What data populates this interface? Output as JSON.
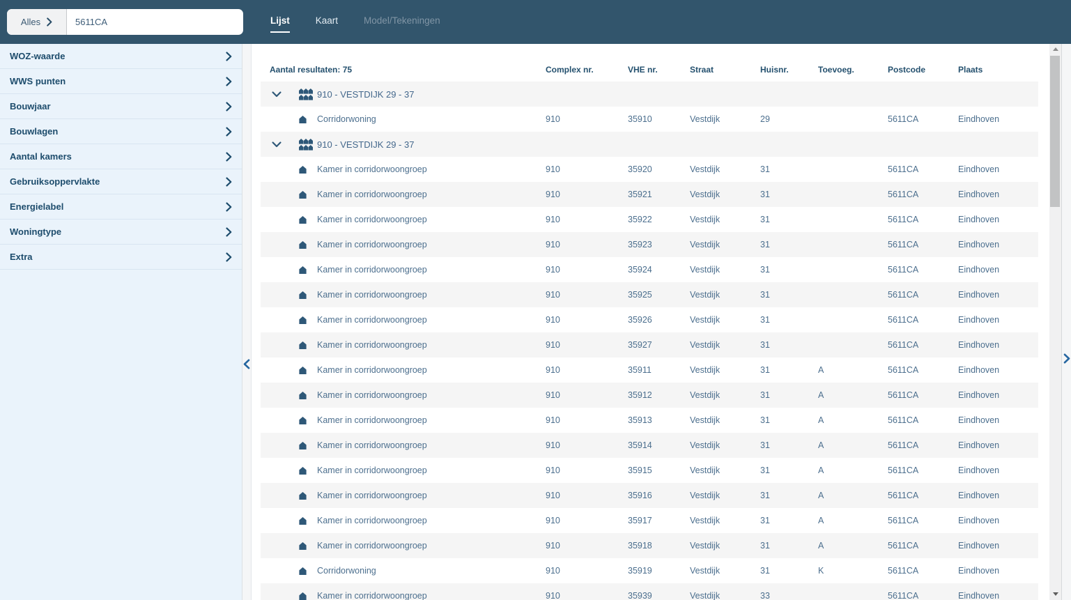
{
  "topbar": {
    "search": {
      "scope_label": "Alles",
      "value": "5611CA"
    },
    "tabs": [
      {
        "label": "Lijst",
        "active": true
      },
      {
        "label": "Kaart",
        "active": false
      },
      {
        "label": "Model/Tekeningen",
        "active": false
      }
    ]
  },
  "sidebar": {
    "items": [
      {
        "label": "WOZ-waarde"
      },
      {
        "label": "WWS punten"
      },
      {
        "label": "Bouwjaar"
      },
      {
        "label": "Bouwlagen"
      },
      {
        "label": "Aantal kamers"
      },
      {
        "label": "Gebruiksoppervlakte"
      },
      {
        "label": "Energielabel"
      },
      {
        "label": "Woningtype"
      },
      {
        "label": "Extra"
      }
    ]
  },
  "results": {
    "count_label": "Aantal resultaten: 75",
    "columns": [
      "Complex nr.",
      "VHE nr.",
      "Straat",
      "Huisnr.",
      "Toevoeg.",
      "Postcode",
      "Plaats"
    ],
    "rows": [
      {
        "type": "group",
        "label": "910 - VESTDIJK 29 - 37"
      },
      {
        "type": "unit",
        "name": "Corridorwoning",
        "complex": "910",
        "vhe": "35910",
        "straat": "Vestdijk",
        "huisnr": "29",
        "toevoeg": "",
        "postcode": "5611CA",
        "plaats": "Eindhoven"
      },
      {
        "type": "group",
        "label": "910 - VESTDIJK 29 - 37"
      },
      {
        "type": "unit",
        "name": "Kamer in corridorwoongroep",
        "complex": "910",
        "vhe": "35920",
        "straat": "Vestdijk",
        "huisnr": "31",
        "toevoeg": "",
        "postcode": "5611CA",
        "plaats": "Eindhoven"
      },
      {
        "type": "unit",
        "name": "Kamer in corridorwoongroep",
        "complex": "910",
        "vhe": "35921",
        "straat": "Vestdijk",
        "huisnr": "31",
        "toevoeg": "",
        "postcode": "5611CA",
        "plaats": "Eindhoven"
      },
      {
        "type": "unit",
        "name": "Kamer in corridorwoongroep",
        "complex": "910",
        "vhe": "35922",
        "straat": "Vestdijk",
        "huisnr": "31",
        "toevoeg": "",
        "postcode": "5611CA",
        "plaats": "Eindhoven"
      },
      {
        "type": "unit",
        "name": "Kamer in corridorwoongroep",
        "complex": "910",
        "vhe": "35923",
        "straat": "Vestdijk",
        "huisnr": "31",
        "toevoeg": "",
        "postcode": "5611CA",
        "plaats": "Eindhoven"
      },
      {
        "type": "unit",
        "name": "Kamer in corridorwoongroep",
        "complex": "910",
        "vhe": "35924",
        "straat": "Vestdijk",
        "huisnr": "31",
        "toevoeg": "",
        "postcode": "5611CA",
        "plaats": "Eindhoven"
      },
      {
        "type": "unit",
        "name": "Kamer in corridorwoongroep",
        "complex": "910",
        "vhe": "35925",
        "straat": "Vestdijk",
        "huisnr": "31",
        "toevoeg": "",
        "postcode": "5611CA",
        "plaats": "Eindhoven"
      },
      {
        "type": "unit",
        "name": "Kamer in corridorwoongroep",
        "complex": "910",
        "vhe": "35926",
        "straat": "Vestdijk",
        "huisnr": "31",
        "toevoeg": "",
        "postcode": "5611CA",
        "plaats": "Eindhoven"
      },
      {
        "type": "unit",
        "name": "Kamer in corridorwoongroep",
        "complex": "910",
        "vhe": "35927",
        "straat": "Vestdijk",
        "huisnr": "31",
        "toevoeg": "",
        "postcode": "5611CA",
        "plaats": "Eindhoven"
      },
      {
        "type": "unit",
        "name": "Kamer in corridorwoongroep",
        "complex": "910",
        "vhe": "35911",
        "straat": "Vestdijk",
        "huisnr": "31",
        "toevoeg": "A",
        "postcode": "5611CA",
        "plaats": "Eindhoven"
      },
      {
        "type": "unit",
        "name": "Kamer in corridorwoongroep",
        "complex": "910",
        "vhe": "35912",
        "straat": "Vestdijk",
        "huisnr": "31",
        "toevoeg": "A",
        "postcode": "5611CA",
        "plaats": "Eindhoven"
      },
      {
        "type": "unit",
        "name": "Kamer in corridorwoongroep",
        "complex": "910",
        "vhe": "35913",
        "straat": "Vestdijk",
        "huisnr": "31",
        "toevoeg": "A",
        "postcode": "5611CA",
        "plaats": "Eindhoven"
      },
      {
        "type": "unit",
        "name": "Kamer in corridorwoongroep",
        "complex": "910",
        "vhe": "35914",
        "straat": "Vestdijk",
        "huisnr": "31",
        "toevoeg": "A",
        "postcode": "5611CA",
        "plaats": "Eindhoven"
      },
      {
        "type": "unit",
        "name": "Kamer in corridorwoongroep",
        "complex": "910",
        "vhe": "35915",
        "straat": "Vestdijk",
        "huisnr": "31",
        "toevoeg": "A",
        "postcode": "5611CA",
        "plaats": "Eindhoven"
      },
      {
        "type": "unit",
        "name": "Kamer in corridorwoongroep",
        "complex": "910",
        "vhe": "35916",
        "straat": "Vestdijk",
        "huisnr": "31",
        "toevoeg": "A",
        "postcode": "5611CA",
        "plaats": "Eindhoven"
      },
      {
        "type": "unit",
        "name": "Kamer in corridorwoongroep",
        "complex": "910",
        "vhe": "35917",
        "straat": "Vestdijk",
        "huisnr": "31",
        "toevoeg": "A",
        "postcode": "5611CA",
        "plaats": "Eindhoven"
      },
      {
        "type": "unit",
        "name": "Kamer in corridorwoongroep",
        "complex": "910",
        "vhe": "35918",
        "straat": "Vestdijk",
        "huisnr": "31",
        "toevoeg": "A",
        "postcode": "5611CA",
        "plaats": "Eindhoven"
      },
      {
        "type": "unit",
        "name": "Corridorwoning",
        "complex": "910",
        "vhe": "35919",
        "straat": "Vestdijk",
        "huisnr": "31",
        "toevoeg": "K",
        "postcode": "5611CA",
        "plaats": "Eindhoven"
      },
      {
        "type": "unit",
        "name": "Kamer in corridorwoongroep",
        "complex": "910",
        "vhe": "35939",
        "straat": "Vestdijk",
        "huisnr": "33",
        "toevoeg": "",
        "postcode": "5611CA",
        "plaats": "Eindhoven"
      }
    ]
  },
  "icons": {
    "search_scope": "chevron-right-icon",
    "sidebar_item": "chevron-right-icon",
    "group_expander": "chevron-down-icon",
    "group_row": "complex-buildings-icon",
    "unit_row": "home-icon",
    "collapse_sidebar": "chevron-left-icon",
    "expand_panel": "chevron-right-icon",
    "scroll_up": "arrow-up-icon",
    "scroll_down": "arrow-down-icon"
  },
  "colors": {
    "topbar": "#32556C",
    "sidebar_bg": "#EAF3FB",
    "heading_text": "#24506E",
    "sidebar_text": "#1D4C6C",
    "row_text": "#4C6F8E",
    "zebra_row": "#F5F5F5",
    "icon": "#2E5878",
    "handle_chevron": "#2566A0"
  }
}
